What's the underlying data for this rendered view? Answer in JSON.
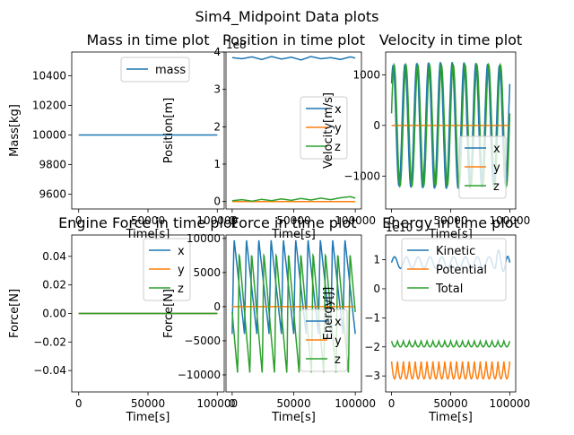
{
  "figure": {
    "suptitle": "Sim4_Midpoint Data plots"
  },
  "chart_data": [
    {
      "type": "line",
      "title": "Mass in time plot",
      "xlabel": "Time[s]",
      "ylabel": "Mass[kg]",
      "xlim": [
        -5000,
        105000
      ],
      "ylim": [
        9500,
        10560
      ],
      "xticks": [
        0,
        50000,
        100000
      ],
      "yticks": [
        9600,
        9800,
        10000,
        10200,
        10400
      ],
      "offset_text": "",
      "legend": "upper-right",
      "series": [
        {
          "name": "mass",
          "color": "#1f77b4",
          "x": [
            0,
            100000
          ],
          "y": [
            10000,
            10000
          ]
        }
      ]
    },
    {
      "type": "line",
      "title": "Position in time plot",
      "xlabel": "Time[s]",
      "ylabel": "Position[m]",
      "xlim": [
        -5000,
        105000
      ],
      "ylim": [
        -20000000.0,
        400000000.0
      ],
      "xticks": [
        0,
        50000,
        100000
      ],
      "yticks": [
        0,
        100000000.0,
        200000000.0,
        300000000.0,
        400000000.0
      ],
      "ytick_labels": [
        "0",
        "1",
        "2",
        "3",
        "4"
      ],
      "offset_text": "1e8",
      "legend": "center-right",
      "series": [
        {
          "name": "x",
          "color": "#1f77b4",
          "x": [
            0,
            8000,
            16000,
            24000,
            32000,
            40000,
            48000,
            56000,
            64000,
            72000,
            80000,
            88000,
            96000,
            100000
          ],
          "y": [
            385000000.0,
            382000000.0,
            387000000.0,
            380000000.0,
            388000000.0,
            381000000.0,
            386000000.0,
            379000000.0,
            388000000.0,
            382000000.0,
            385000000.0,
            380000000.0,
            387000000.0,
            384000000.0
          ]
        },
        {
          "name": "y",
          "color": "#ff7f0e",
          "x": [
            0,
            100000
          ],
          "y": [
            0,
            0
          ]
        },
        {
          "name": "z",
          "color": "#2ca02c",
          "x": [
            0,
            8000,
            16000,
            24000,
            32000,
            40000,
            48000,
            56000,
            64000,
            72000,
            80000,
            88000,
            96000,
            100000
          ],
          "y": [
            2000000.0,
            5000000.0,
            1000000.0,
            6000000.0,
            2000000.0,
            7000000.0,
            3000000.0,
            8000000.0,
            4000000.0,
            9000000.0,
            5000000.0,
            10000000.0,
            13000000.0,
            9000000.0
          ]
        }
      ]
    },
    {
      "type": "line",
      "title": "Velocity in time plot",
      "xlabel": "Time[s]",
      "ylabel": "Velocity[m/s]",
      "xlim": [
        -5000,
        105000
      ],
      "ylim": [
        -1650,
        1450
      ],
      "xticks": [
        0,
        50000,
        100000
      ],
      "yticks": [
        -1000,
        0,
        1000
      ],
      "offset_text": "",
      "legend": "lower-right",
      "series": [
        {
          "name": "x",
          "color": "#1f77b4",
          "x": [],
          "y": []
        },
        {
          "name": "y",
          "color": "#ff7f0e",
          "x": [
            0,
            100000
          ],
          "y": [
            0,
            0
          ]
        },
        {
          "name": "z",
          "color": "#2ca02c",
          "x": [],
          "y": []
        }
      ]
    },
    {
      "type": "line",
      "title": "Engine Force in time plot",
      "xlabel": "Time[s]",
      "ylabel": "Force[N]",
      "xlim": [
        -5000,
        105000
      ],
      "ylim": [
        -0.055,
        0.055
      ],
      "xticks": [
        0,
        50000,
        100000
      ],
      "yticks": [
        -0.04,
        -0.02,
        0.0,
        0.02,
        0.04
      ],
      "ytick_labels": [
        "−0.04",
        "−0.02",
        "0.00",
        "0.02",
        "0.04"
      ],
      "offset_text": "",
      "legend": "upper-right",
      "series": [
        {
          "name": "x",
          "color": "#1f77b4",
          "x": [
            0,
            100000
          ],
          "y": [
            0,
            0
          ]
        },
        {
          "name": "y",
          "color": "#ff7f0e",
          "x": [
            0,
            100000
          ],
          "y": [
            0,
            0
          ]
        },
        {
          "name": "z",
          "color": "#2ca02c",
          "x": [
            0,
            100000
          ],
          "y": [
            0,
            0
          ]
        }
      ]
    },
    {
      "type": "line",
      "title": "Force in time plot",
      "xlabel": "Time[s]",
      "ylabel": "Force[N]",
      "xlim": [
        -5000,
        105000
      ],
      "ylim": [
        -12500,
        10500
      ],
      "xticks": [
        0,
        50000,
        100000
      ],
      "yticks": [
        -10000,
        -5000,
        0,
        5000,
        10000
      ],
      "offset_text": "",
      "legend": "lower-right",
      "series": [
        {
          "name": "x",
          "color": "#1f77b4",
          "x": [],
          "y": []
        },
        {
          "name": "y",
          "color": "#ff7f0e",
          "x": [
            0,
            100000
          ],
          "y": [
            0,
            0
          ]
        },
        {
          "name": "z",
          "color": "#2ca02c",
          "x": [],
          "y": []
        }
      ]
    },
    {
      "type": "line",
      "title": "Energy in time plot",
      "xlabel": "Time[s]",
      "ylabel": "Energy[J]",
      "xlim": [
        -5000,
        105000
      ],
      "ylim": [
        -35500000000.0,
        18500000000.0
      ],
      "xticks": [
        0,
        50000,
        100000
      ],
      "yticks": [
        -30000000000.0,
        -20000000000.0,
        -10000000000.0,
        0,
        10000000000.0
      ],
      "ytick_labels": [
        "−3",
        "−2",
        "−1",
        "0",
        "1"
      ],
      "offset_text": "1e10",
      "legend": "upper-left",
      "series": [
        {
          "name": "Kinetic",
          "color": "#1f77b4",
          "x": [],
          "y": []
        },
        {
          "name": "Potential",
          "color": "#ff7f0e",
          "x": [],
          "y": []
        },
        {
          "name": "Total",
          "color": "#2ca02c",
          "x": [],
          "y": []
        }
      ]
    }
  ]
}
